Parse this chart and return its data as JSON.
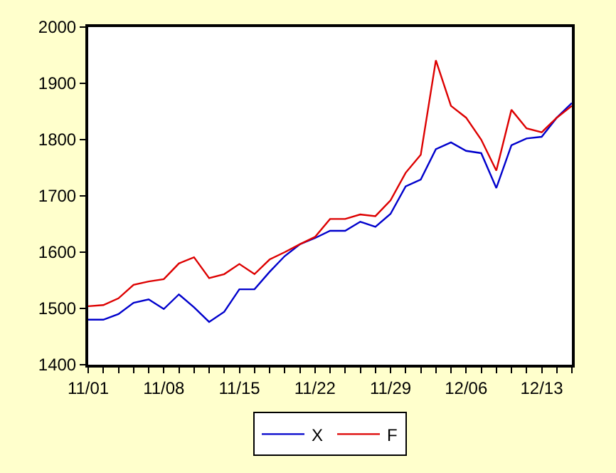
{
  "chart_data": {
    "type": "line",
    "categories": [
      "11/01",
      null,
      null,
      null,
      null,
      "11/08",
      null,
      null,
      null,
      null,
      "11/15",
      null,
      null,
      null,
      null,
      "11/22",
      null,
      null,
      null,
      null,
      "11/29",
      null,
      null,
      null,
      null,
      "12/06",
      null,
      null,
      null,
      null,
      "12/13",
      null,
      null
    ],
    "series": [
      {
        "name": "X",
        "color": "#0000cc",
        "values": [
          1480,
          1480,
          1490,
          1510,
          1516,
          1499,
          1525,
          1502,
          1476,
          1494,
          1534,
          1534,
          1565,
          1593,
          1614,
          1625,
          1638,
          1638,
          1654,
          1645,
          1668,
          1717,
          1729,
          1783,
          1795,
          1780,
          1776,
          1714,
          1790,
          1802,
          1805,
          1839,
          1865
        ]
      },
      {
        "name": "F",
        "color": "#dd0000",
        "values": [
          1504,
          1506,
          1518,
          1542,
          1548,
          1552,
          1580,
          1591,
          1554,
          1561,
          1579,
          1561,
          1587,
          1600,
          1614,
          1627,
          1659,
          1659,
          1667,
          1664,
          1692,
          1741,
          1773,
          1941,
          1860,
          1839,
          1800,
          1745,
          1853,
          1820,
          1813,
          1839,
          1860
        ]
      }
    ],
    "ylim": [
      1400,
      2000
    ],
    "yticks": [
      1400,
      1500,
      1600,
      1700,
      1800,
      1900,
      2000
    ],
    "legend": "bottom",
    "line_style": "solid",
    "marker": "none"
  }
}
